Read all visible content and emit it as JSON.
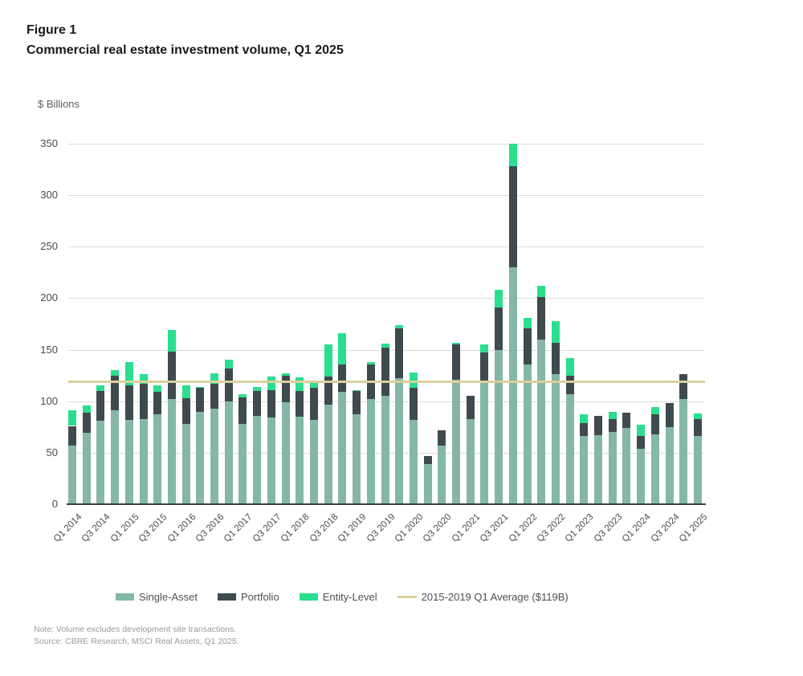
{
  "figure": {
    "label": "Figure 1",
    "title": "Commercial real estate investment volume, Q1 2025",
    "y_unit": "$ Billions",
    "note": "Note: Volume excludes development site transactions.",
    "source": "Source: CBRE Research, MSCI Real Assets, Q1 2025."
  },
  "chart_data": {
    "type": "bar",
    "stacked": true,
    "title": "Commercial real estate investment volume, Q1 2025",
    "ylabel": "$ Billions",
    "ylim": [
      0,
      350
    ],
    "ytick_step": 50,
    "grid": "horizontal",
    "legend_position": "bottom",
    "categories": [
      "Q1 2014",
      "Q2 2014",
      "Q3 2014",
      "Q4 2014",
      "Q1 2015",
      "Q2 2015",
      "Q3 2015",
      "Q4 2015",
      "Q1 2016",
      "Q2 2016",
      "Q3 2016",
      "Q4 2016",
      "Q1 2017",
      "Q2 2017",
      "Q3 2017",
      "Q4 2017",
      "Q1 2018",
      "Q2 2018",
      "Q3 2018",
      "Q4 2018",
      "Q1 2019",
      "Q2 2019",
      "Q3 2019",
      "Q4 2019",
      "Q1 2020",
      "Q2 2020",
      "Q3 2020",
      "Q4 2020",
      "Q1 2021",
      "Q2 2021",
      "Q3 2021",
      "Q4 2021",
      "Q1 2022",
      "Q2 2022",
      "Q3 2022",
      "Q4 2022",
      "Q1 2023",
      "Q2 2023",
      "Q3 2023",
      "Q4 2023",
      "Q1 2024",
      "Q2 2024",
      "Q3 2024",
      "Q4 2024",
      "Q1 2025"
    ],
    "x_ticks_shown": [
      "Q1 2014",
      "Q3 2014",
      "Q1 2015",
      "Q3 2015",
      "Q1 2016",
      "Q3 2016",
      "Q1 2017",
      "Q3 2017",
      "Q1 2018",
      "Q3 2018",
      "Q1 2019",
      "Q3 2019",
      "Q1 2020",
      "Q3 2020",
      "Q1 2021",
      "Q3 2021",
      "Q1 2022",
      "Q3 2022",
      "Q1 2023",
      "Q3 2023",
      "Q1 2024",
      "Q3 2024",
      "Q1 2025"
    ],
    "series": [
      {
        "name": "Single-Asset",
        "color": "#84B7A7",
        "values": [
          57,
          69,
          81,
          91,
          82,
          83,
          87,
          102,
          78,
          90,
          93,
          100,
          78,
          86,
          84,
          99,
          85,
          82,
          97,
          109,
          87,
          102,
          105,
          122,
          82,
          39,
          57,
          121,
          83,
          120,
          150,
          230,
          136,
          160,
          126,
          107,
          66,
          67,
          70,
          74,
          54,
          68,
          75,
          102,
          66
        ]
      },
      {
        "name": "Portfolio",
        "color": "#3F4A4F",
        "values": [
          19,
          20,
          29,
          34,
          33,
          34,
          22,
          46,
          25,
          23,
          24,
          32,
          26,
          24,
          27,
          26,
          25,
          31,
          27,
          27,
          23,
          34,
          47,
          49,
          31,
          8,
          15,
          34,
          22,
          27,
          41,
          98,
          35,
          41,
          31,
          18,
          13,
          19,
          13,
          15,
          12,
          19,
          23,
          24,
          17
        ]
      },
      {
        "name": "Entity-Level",
        "color": "#2BDE8E",
        "values": [
          15,
          7,
          5,
          5,
          23,
          9,
          6,
          21,
          12,
          1,
          10,
          8,
          3,
          4,
          13,
          2,
          13,
          5,
          31,
          30,
          1,
          2,
          4,
          3,
          15,
          0,
          0,
          2,
          0,
          8,
          17,
          22,
          10,
          11,
          21,
          17,
          8,
          0,
          7,
          0,
          11,
          7,
          0,
          0,
          5
        ]
      }
    ],
    "totals": [
      91,
      96,
      115,
      130,
      138,
      126,
      115,
      169,
      115,
      114,
      127,
      140,
      107,
      114,
      124,
      127,
      123,
      118,
      155,
      166,
      111,
      138,
      156,
      174,
      128,
      47,
      72,
      157,
      105,
      155,
      208,
      350,
      181,
      212,
      178,
      142,
      87,
      86,
      90,
      89,
      77,
      94,
      98,
      126,
      88
    ],
    "reference_line": {
      "label": "2015-2019 Q1 Average ($119B)",
      "value": 119,
      "color": "#DCD09B"
    }
  }
}
